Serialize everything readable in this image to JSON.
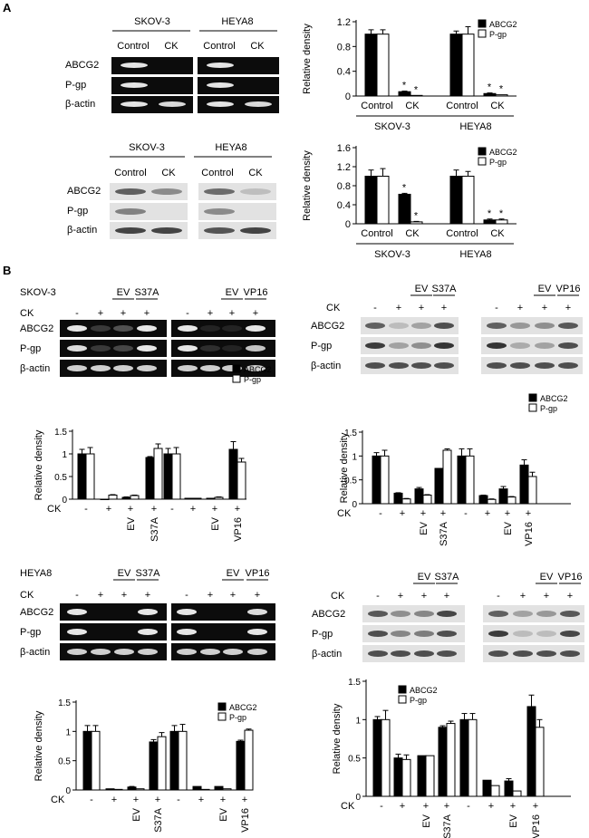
{
  "panels": {
    "a": "A",
    "b": "B"
  },
  "a_rtpcr": {
    "cells": [
      "SKOV-3",
      "HEYA8"
    ],
    "lanes": [
      "Control",
      "CK"
    ],
    "rows": [
      "ABCG2",
      "P-gp",
      "β-actin"
    ]
  },
  "a_wb": {
    "cells": [
      "SKOV-3",
      "HEYA8"
    ],
    "lanes": [
      "Control",
      "CK"
    ],
    "rows": [
      "ABCG2",
      "P-gp",
      "β-actin"
    ]
  },
  "b": {
    "s_cell": "SKOV-3",
    "h_cell": "HEYA8",
    "ck": "CK",
    "minus": "-",
    "plus": "+",
    "ev": "EV",
    "s37a": "S37A",
    "vp16": "VP16",
    "rows": [
      "ABCG2",
      "P-gp",
      "β-actin"
    ]
  },
  "chart_data": [
    {
      "id": "A1",
      "type": "bar",
      "ylabel": "Relative density",
      "ylim": [
        0,
        1.2
      ],
      "yticks": [
        "0",
        "0.4",
        "0.8",
        "1.2"
      ],
      "categories": [
        "Control",
        "CK",
        "Control",
        "CK"
      ],
      "groups": [
        "SKOV-3",
        "HEYA8"
      ],
      "legend": [
        "ABCG2",
        "P-gp"
      ],
      "series": [
        {
          "name": "ABCG2",
          "values": [
            1.0,
            0.07,
            1.0,
            0.04
          ],
          "err": [
            0.07,
            0.01,
            0.05,
            0.01
          ]
        },
        {
          "name": "P-gp",
          "values": [
            1.0,
            0.01,
            1.0,
            0.02
          ],
          "err": [
            0.07,
            0.0,
            0.12,
            0.0
          ]
        }
      ],
      "stars": [
        "*",
        "*",
        "*",
        "*"
      ]
    },
    {
      "id": "A2",
      "type": "bar",
      "ylabel": "Relative density",
      "ylim": [
        0,
        1.6
      ],
      "yticks": [
        "0",
        "0.4",
        "0.8",
        "1.2",
        "1.6"
      ],
      "categories": [
        "Control",
        "CK",
        "Control",
        "CK"
      ],
      "groups": [
        "SKOV-3",
        "HEYA8"
      ],
      "legend": [
        "ABCG2",
        "P-gp"
      ],
      "series": [
        {
          "name": "ABCG2",
          "values": [
            1.0,
            0.62,
            1.0,
            0.08
          ],
          "err": [
            0.13,
            0.02,
            0.13,
            0.02
          ]
        },
        {
          "name": "P-gp",
          "values": [
            1.0,
            0.04,
            1.0,
            0.08
          ],
          "err": [
            0.16,
            0.01,
            0.1,
            0.02
          ]
        }
      ],
      "stars": [
        "*",
        "*",
        "*",
        "*"
      ]
    },
    {
      "id": "B1",
      "type": "bar",
      "ylabel": "Relative density",
      "ylim": [
        0,
        1.5
      ],
      "yticks": [
        "0",
        "0.5",
        "1",
        "1.5"
      ],
      "legend": [
        "ABCG2",
        "P-gp"
      ],
      "series": [
        {
          "name": "ABCG2",
          "values": [
            1.0,
            0.0,
            0.04,
            0.92,
            1.0,
            0.02,
            0.02,
            1.1
          ],
          "err": [
            0.1,
            0,
            0.01,
            0.02,
            0.12,
            0,
            0,
            0.17
          ]
        },
        {
          "name": "P-gp",
          "values": [
            1.0,
            0.09,
            0.08,
            1.12,
            1.0,
            0.02,
            0.04,
            0.82
          ],
          "err": [
            0.14,
            0.01,
            0.01,
            0.1,
            0.14,
            0,
            0.01,
            0.08
          ]
        }
      ]
    },
    {
      "id": "B2",
      "type": "bar",
      "ylabel": "Relative density",
      "ylim": [
        0,
        1.5
      ],
      "yticks": [
        "0",
        "0.5",
        "1",
        "1.5"
      ],
      "legend": [
        "ABCG2",
        "P-gp"
      ],
      "series": [
        {
          "name": "ABCG2",
          "values": [
            1.0,
            0.22,
            0.31,
            0.74,
            1.0,
            0.17,
            0.31,
            0.81
          ],
          "err": [
            0.07,
            0.01,
            0.03,
            0,
            0.15,
            0.01,
            0.05,
            0.11
          ]
        },
        {
          "name": "P-gp",
          "values": [
            1.0,
            0.1,
            0.18,
            1.12,
            1.0,
            0.09,
            0.14,
            0.57
          ],
          "err": [
            0.12,
            0.01,
            0.01,
            0.03,
            0.15,
            0.01,
            0.01,
            0.09
          ]
        }
      ]
    },
    {
      "id": "B3",
      "type": "bar",
      "ylabel": "Relative density",
      "ylim": [
        0,
        1.5
      ],
      "yticks": [
        "0",
        "0.5",
        "1",
        "1.5"
      ],
      "legend": [
        "ABCG2",
        "P-gp"
      ],
      "series": [
        {
          "name": "ABCG2",
          "values": [
            1.0,
            0.02,
            0.05,
            0.82,
            1.0,
            0.06,
            0.06,
            0.83
          ],
          "err": [
            0.1,
            0,
            0.01,
            0.04,
            0.1,
            0,
            0,
            0.02
          ]
        },
        {
          "name": "P-gp",
          "values": [
            1.0,
            0.01,
            0.02,
            0.91,
            1.0,
            0.01,
            0.02,
            1.02
          ],
          "err": [
            0.1,
            0,
            0,
            0.07,
            0.12,
            0,
            0,
            0.02
          ]
        }
      ]
    },
    {
      "id": "B4",
      "type": "bar",
      "ylabel": "Relative density",
      "ylim": [
        0,
        1.5
      ],
      "yticks": [
        "0",
        "0.5",
        "1",
        "1.5"
      ],
      "legend": [
        "ABCG2",
        "P-gp"
      ],
      "series": [
        {
          "name": "ABCG2",
          "values": [
            1.0,
            0.5,
            0.53,
            0.9,
            1.0,
            0.21,
            0.2,
            1.17
          ],
          "err": [
            0.04,
            0.05,
            0,
            0.02,
            0.08,
            0,
            0.03,
            0.15
          ]
        },
        {
          "name": "P-gp",
          "values": [
            1.0,
            0.48,
            0.53,
            0.95,
            1.0,
            0.14,
            0.07,
            0.9
          ],
          "err": [
            0.12,
            0.06,
            0,
            0.03,
            0.08,
            0,
            0,
            0.1
          ]
        }
      ]
    }
  ]
}
